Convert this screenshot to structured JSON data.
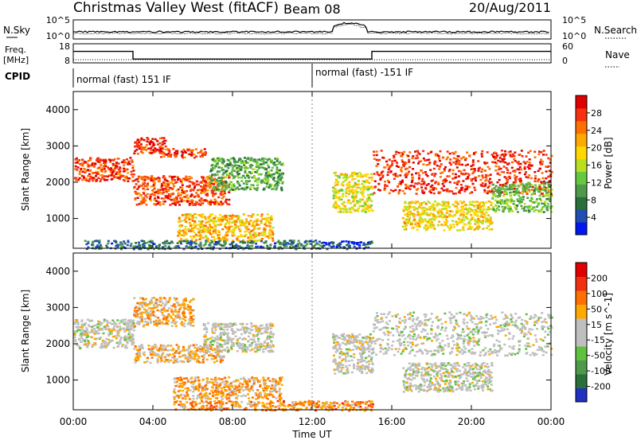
{
  "header": {
    "station": "Christmas Valley West (fitACF)",
    "beam": "Beam 08",
    "date": "20/Aug/2011"
  },
  "params_panel": {
    "nsky_label": "N.Sky",
    "nsky_ticks": [
      "10^5",
      "10^0"
    ],
    "nsearch_label": "N.Search",
    "nsearch_ticks": [
      "10^5",
      "10^0"
    ],
    "freq_label_line1": "Freq.",
    "freq_label_line2": "[MHz]",
    "freq_ticks": [
      "18",
      "8"
    ],
    "nave_label": "Nave",
    "nave_ticks": [
      "60",
      "0"
    ],
    "cpid_label": "CPID",
    "modes": [
      "normal (fast) 151 IF",
      "normal (fast) -151 IF"
    ],
    "freq_series": [
      {
        "t": 0,
        "mhz": 14
      },
      {
        "t": 3,
        "mhz": 14
      },
      {
        "t": 3,
        "mhz": 10
      },
      {
        "t": 15,
        "mhz": 10
      },
      {
        "t": 15,
        "mhz": 14
      },
      {
        "t": 24,
        "mhz": 14
      }
    ]
  },
  "chart_data": [
    {
      "type": "heatmap",
      "title": "",
      "xlabel": "",
      "ylabel": "Slant Range [km]",
      "xlim_hours": [
        0,
        24
      ],
      "ylim_km": [
        180,
        4500
      ],
      "yticks": [
        1000,
        2000,
        3000,
        4000
      ],
      "colorbar_label": "Power [dB]",
      "colorbar_ticks": [
        "28",
        "24",
        "20",
        "16",
        "12",
        "8",
        "4"
      ],
      "colorscale": [
        "#0018f0",
        "#1f4fb0",
        "#2a6e3a",
        "#4f9a4a",
        "#64c840",
        "#b8e020",
        "#ffd800",
        "#ffa800",
        "#ff7000",
        "#f83010",
        "#e00000"
      ],
      "regions": [
        {
          "t0": 0.0,
          "t1": 3.0,
          "r0": 2050,
          "r1": 2700,
          "level": 0.85
        },
        {
          "t0": 3.0,
          "t1": 4.6,
          "r0": 2800,
          "r1": 3250,
          "level": 0.9
        },
        {
          "t0": 4.3,
          "t1": 6.6,
          "r0": 2700,
          "r1": 2950,
          "level": 0.85
        },
        {
          "t0": 3.0,
          "t1": 7.8,
          "r0": 1400,
          "r1": 2200,
          "level": 0.82
        },
        {
          "t0": 6.8,
          "t1": 10.5,
          "r0": 1800,
          "r1": 2700,
          "level": 0.35
        },
        {
          "t0": 5.2,
          "t1": 10.0,
          "r0": 400,
          "r1": 1150,
          "level": 0.65
        },
        {
          "t0": 0.5,
          "t1": 12.5,
          "r0": 180,
          "r1": 420,
          "level": 0.22
        },
        {
          "t0": 12.5,
          "t1": 15.0,
          "r0": 180,
          "r1": 400,
          "level": 0.12
        },
        {
          "t0": 13.0,
          "t1": 15.0,
          "r0": 1200,
          "r1": 2300,
          "level": 0.55
        },
        {
          "t0": 15.0,
          "t1": 24.0,
          "r0": 1700,
          "r1": 2900,
          "level": 0.88
        },
        {
          "t0": 16.5,
          "t1": 21.0,
          "r0": 700,
          "r1": 1500,
          "level": 0.6
        },
        {
          "t0": 21.0,
          "t1": 24.0,
          "r0": 1200,
          "r1": 2000,
          "level": 0.4
        }
      ]
    },
    {
      "type": "heatmap",
      "title": "",
      "xlabel": "Time UT",
      "ylabel": "Slant Range [km]",
      "xlim_hours": [
        0,
        24
      ],
      "ylim_km": [
        180,
        4500
      ],
      "xtick_labels": [
        "00:00",
        "04:00",
        "08:00",
        "12:00",
        "16:00",
        "20:00",
        "00:00"
      ],
      "xtick_hours": [
        0,
        4,
        8,
        12,
        16,
        20,
        24
      ],
      "yticks": [
        1000,
        2000,
        3000,
        4000
      ],
      "colorbar_label": "Velocity [m s^-1]",
      "colorbar_ticks": [
        "200",
        "100",
        "50",
        "15",
        "-15",
        "-50",
        "-100",
        "-200"
      ],
      "colorscale": [
        "#2030c0",
        "#2a6e3a",
        "#4f9a4a",
        "#60c040",
        "#bfbfbf",
        "#bfbfbf",
        "#ffa800",
        "#ff7000",
        "#f03010",
        "#e00000"
      ],
      "regions": [
        {
          "t0": 0.0,
          "t1": 3.0,
          "r0": 1900,
          "r1": 2700,
          "level": 0.5
        },
        {
          "t0": 3.0,
          "t1": 6.0,
          "r0": 2500,
          "r1": 3300,
          "level": 0.65
        },
        {
          "t0": 3.0,
          "t1": 7.5,
          "r0": 1500,
          "r1": 2000,
          "level": 0.62
        },
        {
          "t0": 6.5,
          "t1": 10.0,
          "r0": 1800,
          "r1": 2600,
          "level": 0.5
        },
        {
          "t0": 5.0,
          "t1": 10.5,
          "r0": 500,
          "r1": 1100,
          "level": 0.66
        },
        {
          "t0": 5.0,
          "t1": 15.0,
          "r0": 180,
          "r1": 450,
          "level": 0.7
        },
        {
          "t0": 13.0,
          "t1": 15.0,
          "r0": 1200,
          "r1": 2300,
          "level": 0.5
        },
        {
          "t0": 15.0,
          "t1": 24.0,
          "r0": 1700,
          "r1": 2900,
          "level": 0.5
        },
        {
          "t0": 16.5,
          "t1": 21.0,
          "r0": 700,
          "r1": 1500,
          "level": 0.5
        }
      ]
    }
  ]
}
